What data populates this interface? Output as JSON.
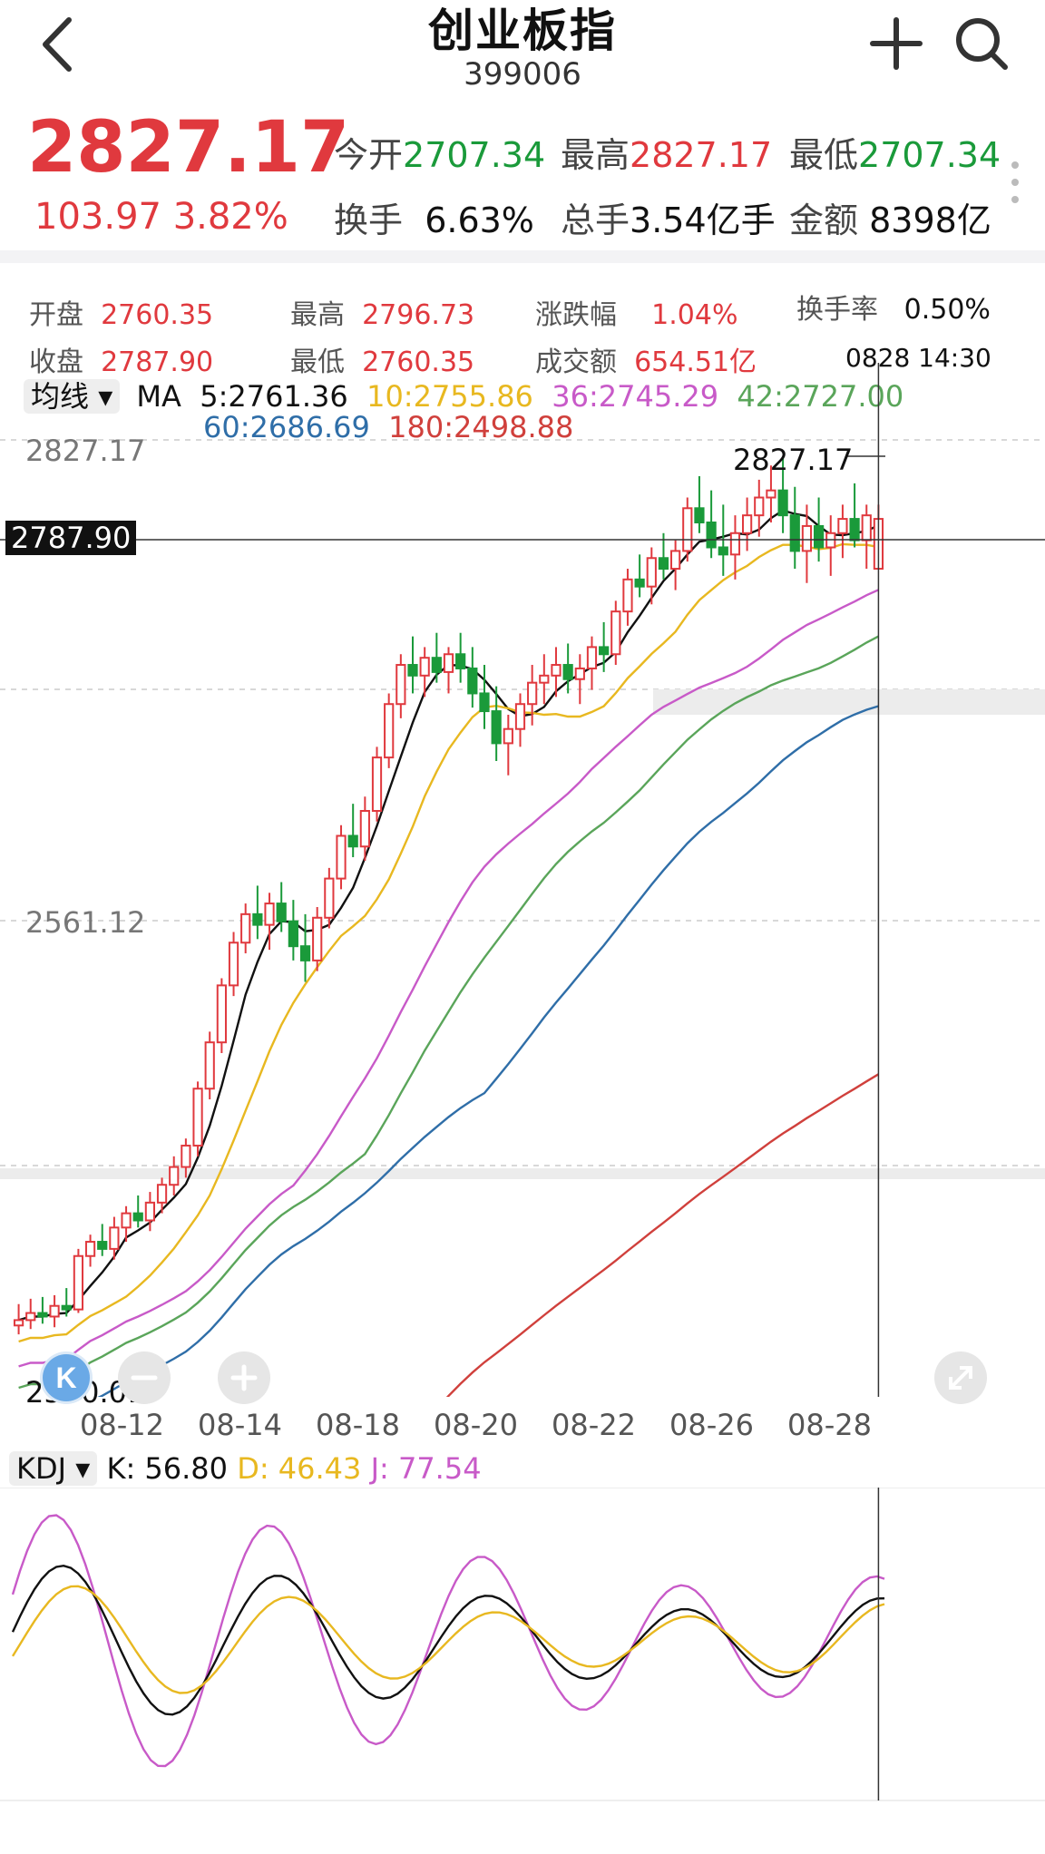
{
  "header": {
    "title": "创业板指",
    "code": "399006"
  },
  "quote": {
    "price": "2827.17",
    "change": "103.97",
    "change_pct": "3.82%",
    "open_label": "今开",
    "open": "2707.34",
    "high_label": "最高",
    "high": "2827.17",
    "low_label": "最低",
    "low": "2707.34",
    "turnover_label": "换手",
    "turnover": "6.63%",
    "volume_label": "总手",
    "volume": "3.54亿手",
    "amount_label": "金额",
    "amount": "8398亿"
  },
  "candle_info": {
    "open_label": "开盘",
    "open": "2760.35",
    "high_label": "最高",
    "high": "2796.73",
    "pct_label": "涨跌幅",
    "pct": "1.04%",
    "turn_label": "换手率",
    "turn": "0.50%",
    "close_label": "收盘",
    "close": "2787.90",
    "low_label": "最低",
    "low": "2760.35",
    "amt_label": "成交额",
    "amt": "654.51亿",
    "time": "0828 14:30"
  },
  "ma_legend": {
    "selector": "均线",
    "prefix": "MA",
    "ma5": "5:2761.36",
    "ma10": "10:2755.86",
    "ma36": "36:2745.29",
    "ma42": "42:2727.00",
    "ma60": "60:2686.69",
    "ma180": "180:2498.88"
  },
  "colors": {
    "ma5": "#111111",
    "ma10": "#e8b820",
    "ma36": "#c85ac8",
    "ma42": "#5aa55a",
    "ma60": "#2f6ea8",
    "ma180": "#d0403c",
    "up": "#e0393e",
    "down": "#1a9a3a"
  },
  "chart_data": {
    "type": "candlestick",
    "title": "",
    "y_max_label": "2827.17",
    "y_mid_label": "2561.12",
    "y_min_label": "2330.01",
    "crosshair_price": "2787.90",
    "high_marker": "2827.17",
    "ylim": [
      2300,
      2840
    ],
    "x_ticks": [
      "08-12",
      "08-14",
      "08-18",
      "08-20",
      "08-22",
      "08-26",
      "08-28"
    ],
    "ohlc": [
      [
        2335,
        2347,
        2330,
        2338
      ],
      [
        2338,
        2350,
        2333,
        2342
      ],
      [
        2342,
        2351,
        2336,
        2340
      ],
      [
        2340,
        2352,
        2334,
        2346
      ],
      [
        2346,
        2356,
        2340,
        2344
      ],
      [
        2344,
        2378,
        2342,
        2374
      ],
      [
        2374,
        2386,
        2368,
        2382
      ],
      [
        2382,
        2392,
        2374,
        2378
      ],
      [
        2378,
        2396,
        2372,
        2390
      ],
      [
        2390,
        2402,
        2382,
        2398
      ],
      [
        2398,
        2408,
        2390,
        2394
      ],
      [
        2394,
        2410,
        2388,
        2404
      ],
      [
        2404,
        2418,
        2398,
        2414
      ],
      [
        2414,
        2430,
        2408,
        2424
      ],
      [
        2424,
        2440,
        2418,
        2436
      ],
      [
        2436,
        2472,
        2430,
        2468
      ],
      [
        2468,
        2500,
        2462,
        2494
      ],
      [
        2494,
        2530,
        2488,
        2526
      ],
      [
        2526,
        2556,
        2520,
        2550
      ],
      [
        2550,
        2572,
        2544,
        2566
      ],
      [
        2566,
        2582,
        2552,
        2560
      ],
      [
        2560,
        2578,
        2546,
        2572
      ],
      [
        2572,
        2584,
        2556,
        2562
      ],
      [
        2562,
        2574,
        2540,
        2548
      ],
      [
        2548,
        2566,
        2528,
        2540
      ],
      [
        2540,
        2570,
        2534,
        2564
      ],
      [
        2564,
        2592,
        2558,
        2586
      ],
      [
        2586,
        2616,
        2580,
        2610
      ],
      [
        2610,
        2628,
        2598,
        2604
      ],
      [
        2604,
        2632,
        2596,
        2624
      ],
      [
        2624,
        2660,
        2618,
        2654
      ],
      [
        2654,
        2690,
        2648,
        2684
      ],
      [
        2684,
        2712,
        2676,
        2706
      ],
      [
        2706,
        2722,
        2690,
        2700
      ],
      [
        2700,
        2716,
        2688,
        2710
      ],
      [
        2710,
        2724,
        2696,
        2702
      ],
      [
        2702,
        2716,
        2690,
        2712
      ],
      [
        2712,
        2724,
        2696,
        2704
      ],
      [
        2704,
        2716,
        2682,
        2690
      ],
      [
        2690,
        2706,
        2670,
        2680
      ],
      [
        2680,
        2694,
        2652,
        2662
      ],
      [
        2662,
        2678,
        2644,
        2670
      ],
      [
        2670,
        2690,
        2660,
        2684
      ],
      [
        2684,
        2706,
        2672,
        2696
      ],
      [
        2696,
        2712,
        2684,
        2700
      ],
      [
        2700,
        2716,
        2688,
        2706
      ],
      [
        2706,
        2718,
        2690,
        2698
      ],
      [
        2698,
        2712,
        2684,
        2704
      ],
      [
        2704,
        2722,
        2692,
        2716
      ],
      [
        2716,
        2730,
        2702,
        2712
      ],
      [
        2712,
        2742,
        2706,
        2736
      ],
      [
        2736,
        2760,
        2728,
        2754
      ],
      [
        2754,
        2768,
        2744,
        2750
      ],
      [
        2750,
        2772,
        2740,
        2766
      ],
      [
        2766,
        2780,
        2754,
        2760
      ],
      [
        2760,
        2776,
        2748,
        2770
      ],
      [
        2770,
        2800,
        2764,
        2794
      ],
      [
        2794,
        2812,
        2780,
        2786
      ],
      [
        2786,
        2804,
        2766,
        2772
      ],
      [
        2772,
        2796,
        2756,
        2768
      ],
      [
        2768,
        2790,
        2754,
        2780
      ],
      [
        2780,
        2800,
        2770,
        2790
      ],
      [
        2790,
        2810,
        2778,
        2800
      ],
      [
        2800,
        2818,
        2786,
        2804
      ],
      [
        2804,
        2822,
        2780,
        2790
      ],
      [
        2790,
        2806,
        2760,
        2770
      ],
      [
        2770,
        2796,
        2752,
        2784
      ],
      [
        2784,
        2800,
        2764,
        2772
      ],
      [
        2772,
        2790,
        2756,
        2780
      ],
      [
        2780,
        2796,
        2766,
        2788
      ],
      [
        2788,
        2808,
        2772,
        2776
      ],
      [
        2776,
        2796,
        2760,
        2790
      ],
      [
        2760,
        2796,
        2760,
        2788
      ]
    ]
  },
  "kdj": {
    "selector": "KDJ",
    "k": "K: 56.80",
    "d": "D: 46.43",
    "j": "J: 77.54"
  }
}
